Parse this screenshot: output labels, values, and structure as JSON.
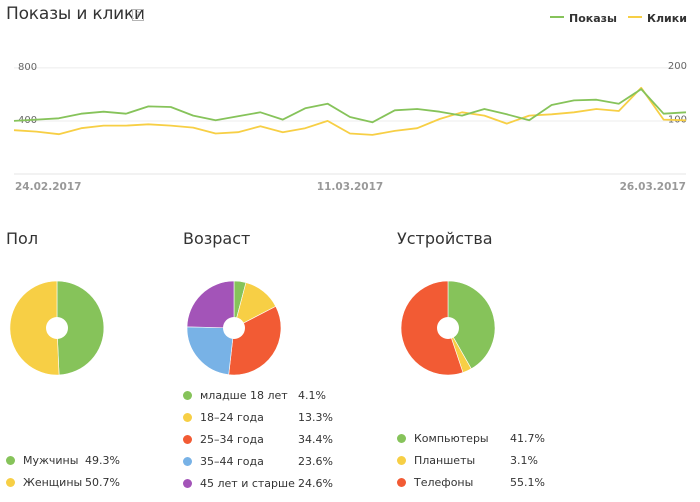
{
  "header": {
    "title": "Показы и клики",
    "help": "?"
  },
  "colors": {
    "shows": "#86c35a",
    "clicks": "#f7cf45",
    "red": "#f25b34",
    "blue": "#78b2e6",
    "purple": "#a354b8",
    "green": "#86c35a",
    "yellow": "#f7cf45"
  },
  "chart_data": [
    {
      "type": "line",
      "legend": [
        "Показы",
        "Клики"
      ],
      "legend_position": "top-right",
      "left_axis": {
        "ticks": [
          "800",
          "400"
        ],
        "range": [
          0,
          950
        ]
      },
      "right_axis": {
        "ticks": [
          "200",
          "100"
        ],
        "range": [
          0,
          235
        ]
      },
      "x_ticks": [
        "24.02.2017",
        "11.03.2017",
        "26.03.2017"
      ],
      "grid": true,
      "series": [
        {
          "name": "Показы",
          "axis": "left",
          "values": [
            400,
            410,
            420,
            455,
            470,
            455,
            510,
            505,
            440,
            405,
            435,
            465,
            410,
            495,
            530,
            430,
            390,
            480,
            490,
            470,
            440,
            490,
            450,
            405,
            520,
            555,
            560,
            530,
            640,
            455,
            465
          ]
        },
        {
          "name": "Клики",
          "axis": "left",
          "values": [
            330,
            320,
            300,
            345,
            365,
            365,
            375,
            365,
            350,
            305,
            315,
            360,
            315,
            345,
            400,
            305,
            295,
            325,
            345,
            415,
            465,
            440,
            380,
            440,
            450,
            465,
            490,
            475,
            650,
            410,
            405
          ]
        }
      ]
    },
    {
      "type": "pie",
      "title": "Пол",
      "slices": [
        {
          "label": "Мужчины",
          "value": 49.3,
          "display": "49.3%",
          "color": "#86c35a"
        },
        {
          "label": "Женщины",
          "value": 50.7,
          "display": "50.7%",
          "color": "#f7cf45"
        }
      ]
    },
    {
      "type": "pie",
      "title": "Возраст",
      "slices": [
        {
          "label": "младше 18 лет",
          "value": 4.1,
          "display": "4.1%",
          "color": "#86c35a"
        },
        {
          "label": "18–24 года",
          "value": 13.3,
          "display": "13.3%",
          "color": "#f7cf45"
        },
        {
          "label": "25–34 года",
          "value": 34.4,
          "display": "34.4%",
          "color": "#f25b34"
        },
        {
          "label": "35–44 года",
          "value": 23.6,
          "display": "23.6%",
          "color": "#78b2e6"
        },
        {
          "label": "45 лет и старше",
          "value": 24.6,
          "display": "24.6%",
          "color": "#a354b8"
        }
      ]
    },
    {
      "type": "pie",
      "title": "Устройства",
      "slices": [
        {
          "label": "Компьютеры",
          "value": 41.7,
          "display": "41.7%",
          "color": "#86c35a"
        },
        {
          "label": "Планшеты",
          "value": 3.1,
          "display": "3.1%",
          "color": "#f7cf45"
        },
        {
          "label": "Телефоны",
          "value": 55.1,
          "display": "55.1%",
          "color": "#f25b34"
        }
      ]
    }
  ]
}
